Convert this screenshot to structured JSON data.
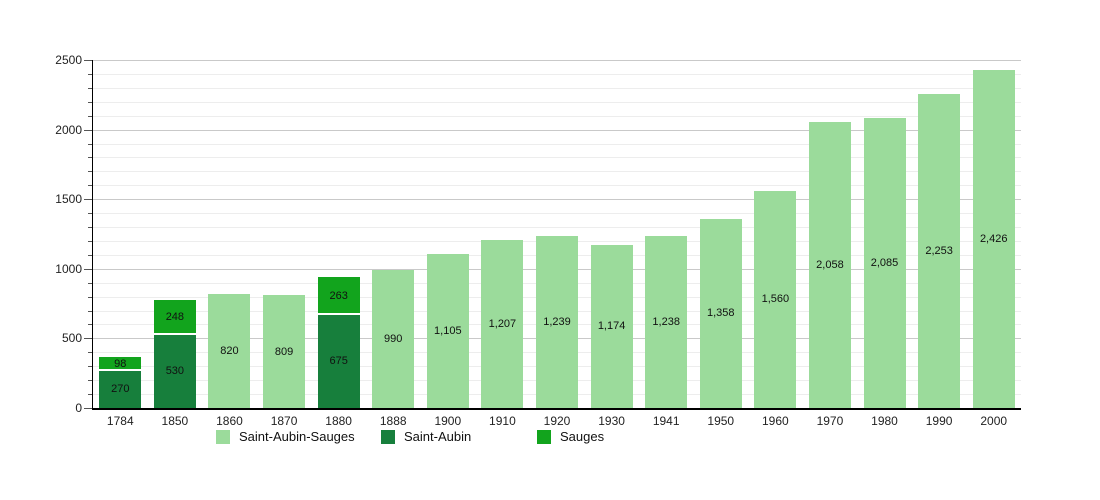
{
  "page": {
    "background": "#ffffff",
    "axis_color": "#000000",
    "major_grid_color": "#c9c9c9",
    "minor_grid_color": "#ededed"
  },
  "chart_data": {
    "type": "bar",
    "stacked": true,
    "title": "",
    "xlabel": "",
    "ylabel": "",
    "ylim": [
      0,
      2500
    ],
    "y_major_step": 500,
    "y_minor_step": 100,
    "grid": true,
    "legend_position": "bottom",
    "categories": [
      "1784",
      "1850",
      "1860",
      "1870",
      "1880",
      "1888",
      "1900",
      "1910",
      "1920",
      "1930",
      "1941",
      "1950",
      "1960",
      "1970",
      "1980",
      "1990",
      "2000"
    ],
    "y_tick_labels": [
      "0",
      "500",
      "1000",
      "1500",
      "2000",
      "2500"
    ],
    "series": [
      {
        "name": "Saint-Aubin-Sauges",
        "role": "combined-municipality",
        "color": "#9bdb9b",
        "values": [
          null,
          null,
          820,
          809,
          null,
          990,
          1105,
          1207,
          1239,
          1174,
          1238,
          1358,
          1560,
          2058,
          2085,
          2253,
          2426
        ],
        "labels": [
          null,
          null,
          "820",
          "809",
          null,
          "990",
          "1,105",
          "1,207",
          "1,239",
          "1,174",
          "1,238",
          "1,358",
          "1,560",
          "2,058",
          "2,085",
          "2,253",
          "2,426"
        ]
      },
      {
        "name": "Saint-Aubin",
        "role": "stack-bottom",
        "color": "#177f3c",
        "values": [
          270,
          530,
          null,
          null,
          675,
          null,
          null,
          null,
          null,
          null,
          null,
          null,
          null,
          null,
          null,
          null,
          null
        ],
        "labels": [
          "270",
          "530",
          null,
          null,
          "675",
          null,
          null,
          null,
          null,
          null,
          null,
          null,
          null,
          null,
          null,
          null,
          null
        ]
      },
      {
        "name": "Sauges",
        "role": "stack-top",
        "color": "#12a41d",
        "values": [
          98,
          248,
          null,
          null,
          263,
          null,
          null,
          null,
          null,
          null,
          null,
          null,
          null,
          null,
          null,
          null,
          null
        ],
        "labels": [
          "98",
          "248",
          null,
          null,
          "263",
          null,
          null,
          null,
          null,
          null,
          null,
          null,
          null,
          null,
          null,
          null,
          null
        ]
      }
    ],
    "legend": [
      {
        "label": "Saint-Aubin-Sauges",
        "color": "#9bdb9b"
      },
      {
        "label": "Saint-Aubin",
        "color": "#177f3c"
      },
      {
        "label": "Sauges",
        "color": "#12a41d"
      }
    ]
  }
}
